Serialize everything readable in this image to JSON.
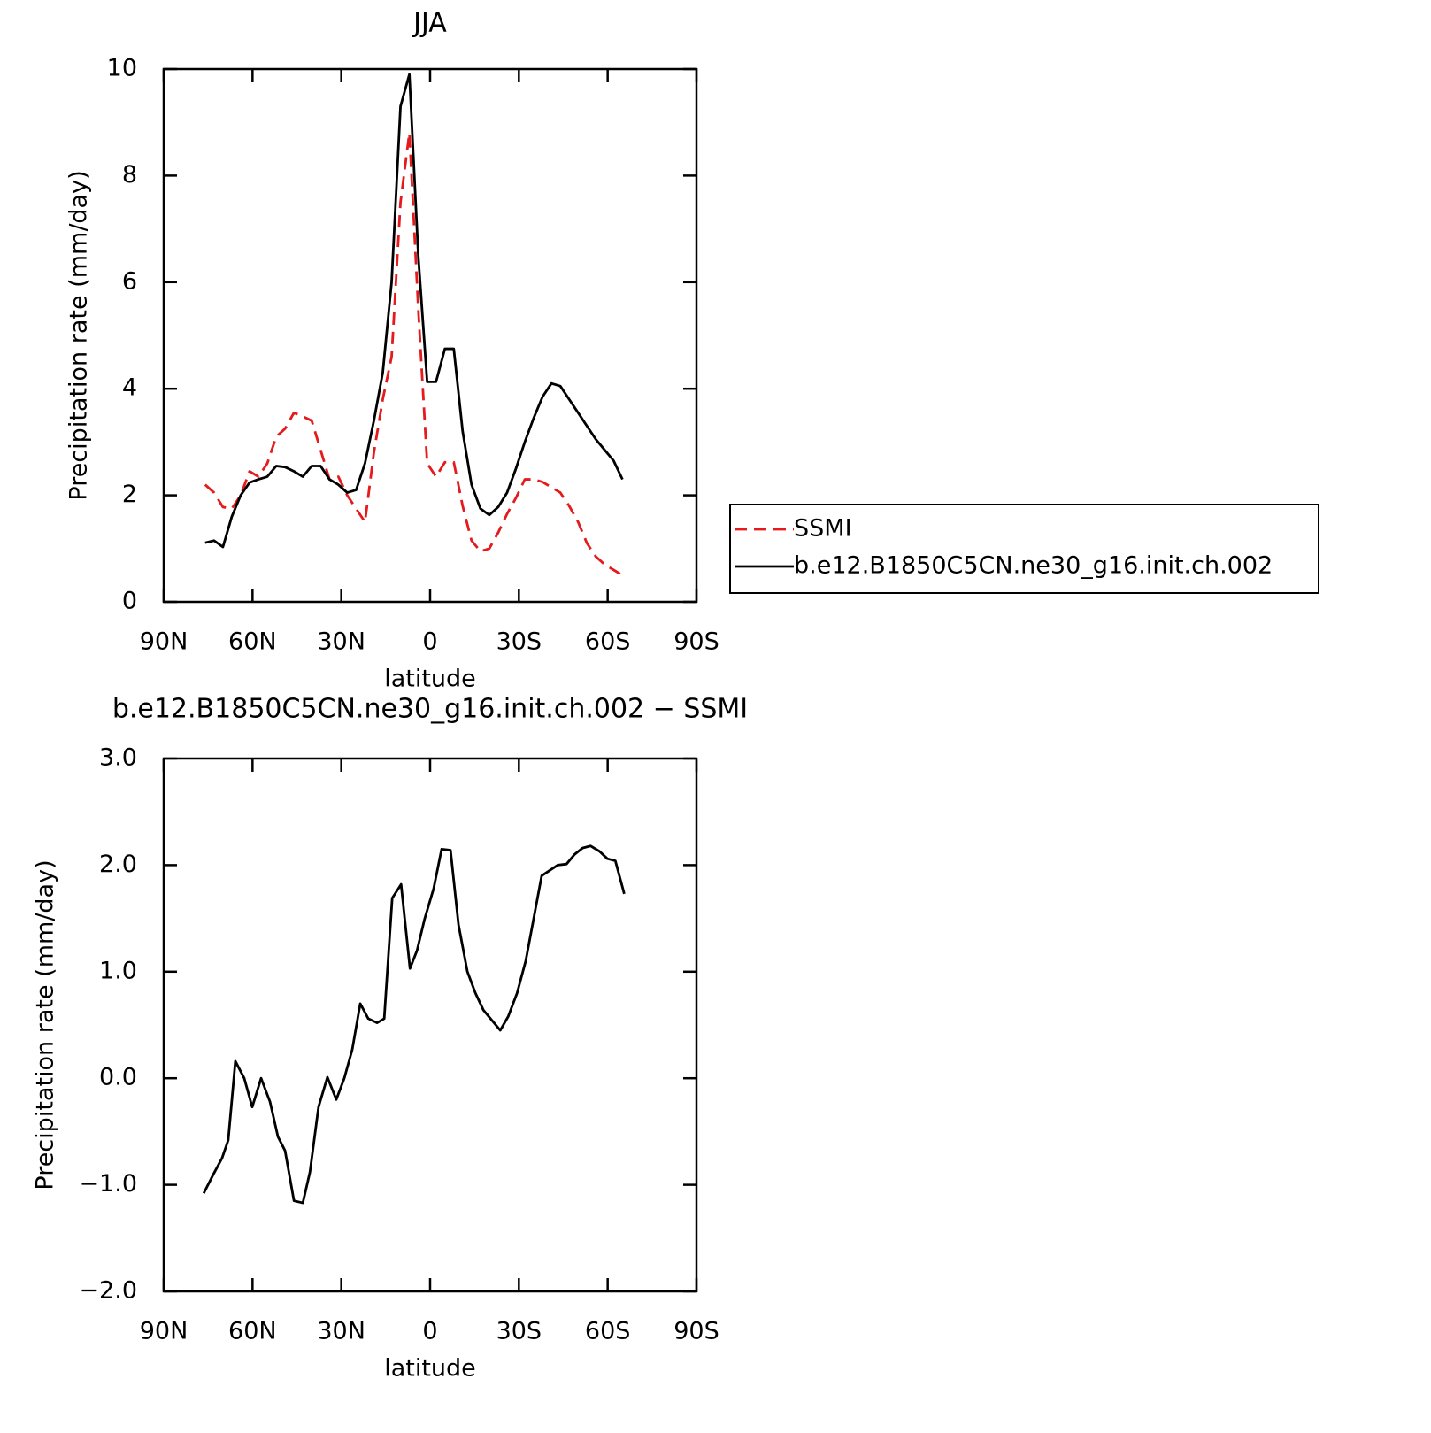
{
  "chart_data": [
    {
      "type": "line",
      "title": "JJA",
      "x_label": "latitude",
      "y_label": "Precipitation rate (mm/day)",
      "xlim": [
        90,
        -90
      ],
      "xticks": [
        {
          "value": 90,
          "label": "90N"
        },
        {
          "value": 60,
          "label": "60N"
        },
        {
          "value": 30,
          "label": "30N"
        },
        0,
        {
          "value": -30,
          "label": "30S"
        },
        {
          "value": -60,
          "label": "60S"
        },
        {
          "value": -90,
          "label": "90S"
        }
      ],
      "ylim": [
        0,
        10
      ],
      "yticks": [
        0,
        2,
        4,
        6,
        8,
        10
      ],
      "legend": "right",
      "x": [
        76,
        73,
        70,
        67,
        64,
        61,
        58,
        55,
        52,
        49,
        46,
        43,
        40,
        37,
        34,
        31,
        28,
        25,
        22,
        19,
        16,
        13,
        10,
        7,
        4,
        1,
        -2,
        -5,
        -8,
        -11,
        -14,
        -17,
        -20,
        -23,
        -26,
        -29,
        -32,
        -35,
        -38,
        -41,
        -44,
        -47,
        -50,
        -53,
        -56,
        -59,
        -62,
        -65
      ],
      "series": [
        {
          "name": "SSMI",
          "color": "#e41a1c",
          "dash": true,
          "values": [
            2.2,
            2.05,
            1.78,
            1.75,
            2.0,
            2.45,
            2.35,
            2.6,
            3.1,
            3.25,
            3.55,
            3.48,
            3.4,
            2.85,
            2.3,
            2.35,
            2.0,
            1.75,
            1.5,
            2.8,
            3.8,
            4.6,
            7.5,
            8.8,
            5.5,
            2.6,
            2.35,
            2.62,
            2.62,
            1.8,
            1.15,
            0.95,
            1.0,
            1.3,
            1.65,
            1.95,
            2.3,
            2.3,
            2.25,
            2.15,
            2.05,
            1.8,
            1.5,
            1.1,
            0.85,
            0.7,
            0.6,
            0.5
          ]
        },
        {
          "name": "b.e12.B1850C5CN.ne30_g16.init.ch.002",
          "color": "#000000",
          "dash": false,
          "values": [
            1.11,
            1.15,
            1.03,
            1.6,
            2.0,
            2.24,
            2.3,
            2.35,
            2.55,
            2.53,
            2.45,
            2.35,
            2.55,
            2.55,
            2.3,
            2.2,
            2.05,
            2.1,
            2.6,
            3.4,
            4.3,
            6.0,
            9.3,
            9.9,
            6.5,
            4.13,
            4.13,
            4.75,
            4.75,
            3.2,
            2.2,
            1.75,
            1.63,
            1.78,
            2.05,
            2.5,
            3.0,
            3.45,
            3.85,
            4.1,
            4.05,
            3.8,
            3.55,
            3.3,
            3.05,
            2.85,
            2.65,
            2.3
          ]
        }
      ]
    },
    {
      "type": "line",
      "title": "b.e12.B1850C5CN.ne30_g16.init.ch.002 − SSMI",
      "x_label": "latitude",
      "y_label": "Precipitation rate (mm/day)",
      "xlim": [
        90,
        -90
      ],
      "xticks": [
        {
          "value": 90,
          "label": "90N"
        },
        {
          "value": 60,
          "label": "60N"
        },
        {
          "value": 30,
          "label": "30N"
        },
        0,
        {
          "value": -30,
          "label": "30S"
        },
        {
          "value": -60,
          "label": "60S"
        },
        {
          "value": -90,
          "label": "90S"
        }
      ],
      "ylim": [
        -2,
        3
      ],
      "yticks": [
        {
          "value": -2,
          "label": "−2.0"
        },
        {
          "value": -1,
          "label": "−1.0"
        },
        {
          "value": 0,
          "label": "0.0"
        },
        {
          "value": 1,
          "label": "1.0"
        },
        {
          "value": 2,
          "label": "2.0"
        },
        {
          "value": 3,
          "label": "3.0"
        }
      ],
      "x": [
        76.5,
        73.2,
        70.3,
        68.2,
        65.8,
        62.8,
        60.1,
        57.1,
        54.1,
        51.4,
        49.0,
        46.0,
        43.0,
        40.6,
        37.7,
        34.7,
        31.7,
        29.0,
        26.3,
        23.6,
        20.9,
        17.9,
        15.5,
        12.8,
        9.8,
        6.8,
        4.4,
        1.8,
        -1.2,
        -3.9,
        -6.9,
        -9.6,
        -12.6,
        -15.3,
        -18.0,
        -21.0,
        -23.7,
        -26.4,
        -29.4,
        -32.3,
        -35.0,
        -37.7,
        -40.4,
        -43.1,
        -46.1,
        -48.8,
        -51.5,
        -54.2,
        -57.2,
        -59.9,
        -62.6,
        -65.6
      ],
      "series": [
        {
          "color": "#000000",
          "dash": false,
          "values": [
            -1.08,
            -0.9,
            -0.75,
            -0.58,
            0.16,
            0.0,
            -0.27,
            0.0,
            -0.22,
            -0.55,
            -0.68,
            -1.15,
            -1.17,
            -0.88,
            -0.27,
            0.01,
            -0.2,
            0.0,
            0.27,
            0.7,
            0.56,
            0.52,
            0.56,
            1.69,
            1.82,
            1.03,
            1.2,
            1.5,
            1.78,
            2.15,
            2.14,
            1.44,
            1.0,
            0.8,
            0.64,
            0.54,
            0.45,
            0.58,
            0.8,
            1.1,
            1.5,
            1.9,
            1.95,
            2.0,
            2.01,
            2.1,
            2.16,
            2.18,
            2.13,
            2.06,
            2.04,
            1.73
          ]
        }
      ]
    }
  ]
}
